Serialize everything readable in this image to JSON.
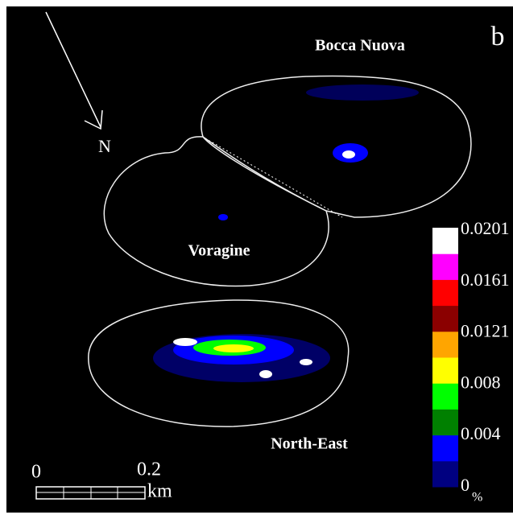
{
  "panel_label": "b",
  "places": {
    "bocca_nuova": "Bocca Nuova",
    "voragine": "Voragine",
    "north_east": "North-East"
  },
  "north_arrow": "N",
  "scale_bar": {
    "start": "0",
    "end": "0.2",
    "unit": "km"
  },
  "colorbar": {
    "colors": [
      "#000080",
      "#0000ff",
      "#008000",
      "#00ff00",
      "#ffff00",
      "#ffa500",
      "#8b0000",
      "#ff0000",
      "#ff00ff",
      "#ffffff"
    ],
    "labels": [
      "0.0201",
      "0.0161",
      "0.0121",
      "0.008",
      "0.004",
      "0"
    ],
    "unit": "%"
  }
}
